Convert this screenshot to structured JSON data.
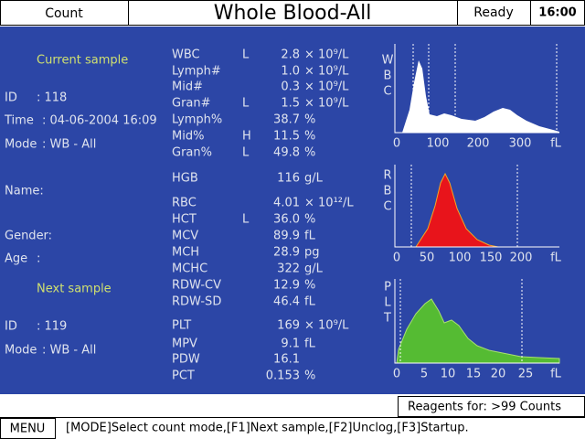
{
  "header": {
    "mode_button": "Count",
    "title": "Whole Blood-All",
    "status": "Ready",
    "clock": "16:00"
  },
  "current_sample": {
    "heading": "Current sample",
    "fields": [
      {
        "label": "ID",
        "value": ": 118"
      },
      {
        "label": "Time",
        "value": ": 04-06-2004 16:09"
      },
      {
        "label": "Mode",
        "value": ": WB - All"
      },
      {
        "label": "Name:"
      },
      {
        "label": "Gender:"
      },
      {
        "label": "Age",
        "value": ":"
      }
    ]
  },
  "next_sample": {
    "heading": "Next sample",
    "fields": [
      {
        "label": "ID",
        "value": ": 119"
      },
      {
        "label": "Mode",
        "value": ": WB - All"
      }
    ]
  },
  "parameters": [
    {
      "name": "WBC",
      "flag": "L",
      "value": "2.8",
      "unit": "× 10⁹/L"
    },
    {
      "name": "Lymph#",
      "value": "1.0",
      "unit": "× 10⁹/L"
    },
    {
      "name": "Mid#",
      "value": "0.3",
      "unit": "× 10⁹/L"
    },
    {
      "name": "Gran#",
      "flag": "L",
      "value": "1.5",
      "unit": "× 10⁹/L"
    },
    {
      "name": "Lymph%",
      "value": "38.7",
      "unit": "%"
    },
    {
      "name": "Mid%",
      "flag": "H",
      "value": "11.5",
      "unit": "%"
    },
    {
      "name": "Gran%",
      "flag": "L",
      "value": "49.8",
      "unit": "%"
    },
    {
      "name": "HGB",
      "value": "116",
      "unit": "g/L"
    },
    {
      "name": "RBC",
      "value": "4.01",
      "unit": "× 10¹²/L"
    },
    {
      "name": "HCT",
      "flag": "L",
      "value": "36.0",
      "unit": "%"
    },
    {
      "name": "MCV",
      "value": "89.9",
      "unit": "fL"
    },
    {
      "name": "MCH",
      "value": "28.9",
      "unit": "pg"
    },
    {
      "name": "MCHC",
      "value": "322",
      "unit": "g/L"
    },
    {
      "name": "RDW-CV",
      "value": "12.9",
      "unit": "%"
    },
    {
      "name": "RDW-SD",
      "value": "46.4",
      "unit": "fL"
    },
    {
      "name": "PLT",
      "value": "169",
      "unit": "× 10⁹/L"
    },
    {
      "name": "MPV",
      "value": "9.1",
      "unit": "fL"
    },
    {
      "name": "PDW",
      "value": "16.1"
    },
    {
      "name": "PCT",
      "value": "0.153",
      "unit": "%"
    }
  ],
  "histograms": [
    {
      "label": "WBC",
      "ticks": [
        "0",
        "100",
        "200",
        "300",
        "fL"
      ]
    },
    {
      "label": "RBC",
      "ticks": [
        "0",
        "50",
        "100",
        "150",
        "200",
        "fL"
      ]
    },
    {
      "label": "PLT",
      "ticks": [
        "0",
        "5",
        "10",
        "15",
        "20",
        "25",
        "fL"
      ]
    }
  ],
  "footer": {
    "reagents": "Reagents for: >99 Counts",
    "menu": "MENU",
    "message": "[MODE]Select count mode,[F1]Next sample,[F2]Unclog,[F3]Startup."
  }
}
